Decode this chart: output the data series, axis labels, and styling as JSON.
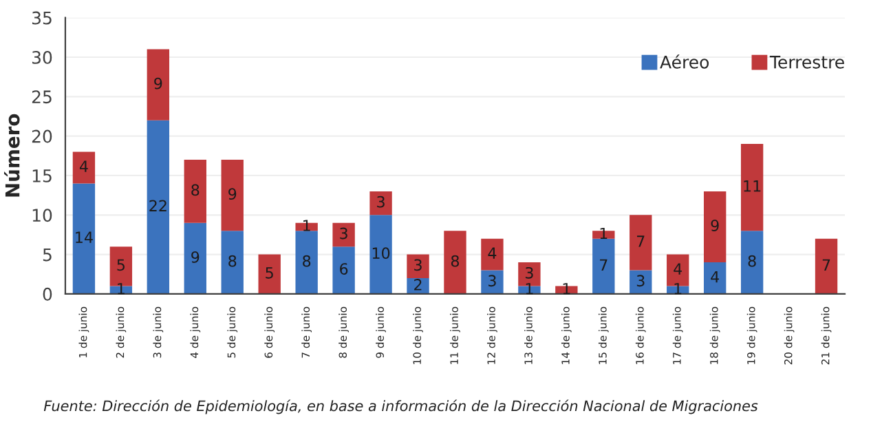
{
  "chart_data": {
    "type": "bar",
    "stacked": true,
    "ylabel": "Número",
    "categories": [
      "1 de junio",
      "2 de junio",
      "3 de junio",
      "4 de junio",
      "5 de junio",
      "6 de junio",
      "7 de junio",
      "8 de junio",
      "9 de junio",
      "10 de junio",
      "11 de junio",
      "12 de junio",
      "13 de junio",
      "14 de junio",
      "15 de junio",
      "16 de junio",
      "17 de junio",
      "18 de junio",
      "19 de junio",
      "20 de junio",
      "21 de junio"
    ],
    "series": [
      {
        "name": "Aéreo",
        "color": "#3b73be",
        "values": [
          14,
          1,
          22,
          9,
          8,
          0,
          8,
          6,
          10,
          2,
          0,
          3,
          1,
          0,
          7,
          3,
          1,
          4,
          8,
          0,
          0
        ],
        "value_labels": [
          "14",
          "1",
          "22",
          "9",
          "8",
          null,
          "8",
          "6",
          "10",
          "2",
          null,
          "3",
          "1",
          null,
          "7",
          "3",
          "1",
          "4",
          "8",
          null,
          null
        ]
      },
      {
        "name": "Terrestre",
        "color": "#c0393b",
        "values": [
          4,
          5,
          9,
          8,
          9,
          5,
          1,
          3,
          3,
          3,
          8,
          4,
          3,
          1,
          1,
          7,
          4,
          9,
          11,
          0,
          7
        ],
        "value_labels": [
          "4",
          "5",
          "9",
          "8",
          "9",
          "5",
          "1",
          "3",
          "3",
          "3",
          "8",
          "4",
          "3",
          "1",
          "1",
          "7",
          "4",
          "9",
          "11",
          null,
          "7"
        ]
      }
    ],
    "ylim": [
      0,
      35
    ],
    "yticks": [
      0,
      5,
      10,
      15,
      20,
      25,
      30,
      35
    ],
    "grid": "y",
    "legend": "top right",
    "annotations": [
      "Fuente: Dirección de Epidemiología, en base a información de la Dirección Nacional de Migraciones"
    ]
  }
}
